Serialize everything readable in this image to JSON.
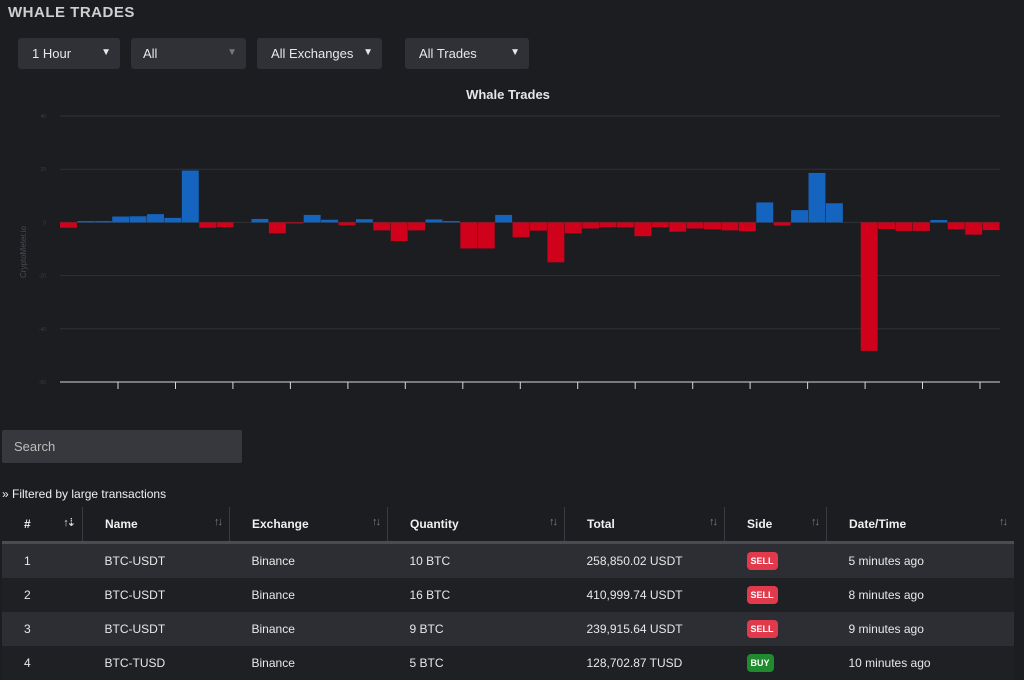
{
  "page": {
    "title": "WHALE TRADES"
  },
  "filters": {
    "timeframe": "1 Hour",
    "pair": "All",
    "exchange": "All Exchanges",
    "trade_type": "All Trades"
  },
  "chart_data": {
    "type": "bar",
    "title": "Whale Trades",
    "ylabel": "",
    "ylim": [
      -60,
      40
    ],
    "y_ticks": [
      "40",
      "20",
      "0",
      "-20",
      "-40",
      "-60"
    ],
    "x_tick_count": 16,
    "watermark": "CryptoMeter.io",
    "colors": {
      "positive": "#1565c0",
      "negative": "#d0021b"
    },
    "values": [
      -2,
      0.5,
      0.5,
      2.2,
      2.3,
      3.1,
      1.7,
      19.5,
      -2,
      -1.8,
      0,
      1.3,
      -4.1,
      -0.4,
      2.8,
      1,
      -1.1,
      1.2,
      -3,
      -7,
      -3,
      1.1,
      0.5,
      -9.8,
      -9.8,
      2.8,
      -5.6,
      -3.1,
      -15,
      -4.1,
      -2.3,
      -1.8,
      -1.9,
      -5.2,
      -1.8,
      -3.5,
      -2.3,
      -2.6,
      -3,
      -3.3,
      7.5,
      -1.2,
      4.6,
      18.6,
      7.2,
      0,
      -48.3,
      -2.5,
      -3.2,
      -3.2,
      0.9,
      -2.6,
      -4.6,
      -2.9
    ]
  },
  "search": {
    "placeholder": "Search"
  },
  "filter_note": "» Filtered by large transactions",
  "table": {
    "columns": [
      "#",
      "Name",
      "Exchange",
      "Quantity",
      "Total",
      "Side",
      "Date/Time"
    ],
    "rows": [
      {
        "num": "1",
        "name": "BTC-USDT",
        "exchange": "Binance",
        "quantity": "10 BTC",
        "total": "258,850.02 USDT",
        "side": "SELL",
        "time": "5 minutes ago"
      },
      {
        "num": "2",
        "name": "BTC-USDT",
        "exchange": "Binance",
        "quantity": "16 BTC",
        "total": "410,999.74 USDT",
        "side": "SELL",
        "time": "8 minutes ago"
      },
      {
        "num": "3",
        "name": "BTC-USDT",
        "exchange": "Binance",
        "quantity": "9 BTC",
        "total": "239,915.64 USDT",
        "side": "SELL",
        "time": "9 minutes ago"
      },
      {
        "num": "4",
        "name": "BTC-TUSD",
        "exchange": "Binance",
        "quantity": "5 BTC",
        "total": "128,702.87 TUSD",
        "side": "BUY",
        "time": "10 minutes ago"
      }
    ]
  },
  "icons": {
    "caret": "chevron-down-icon",
    "sort_asc": "sort-ascending-icon",
    "sort": "sort-icon"
  }
}
